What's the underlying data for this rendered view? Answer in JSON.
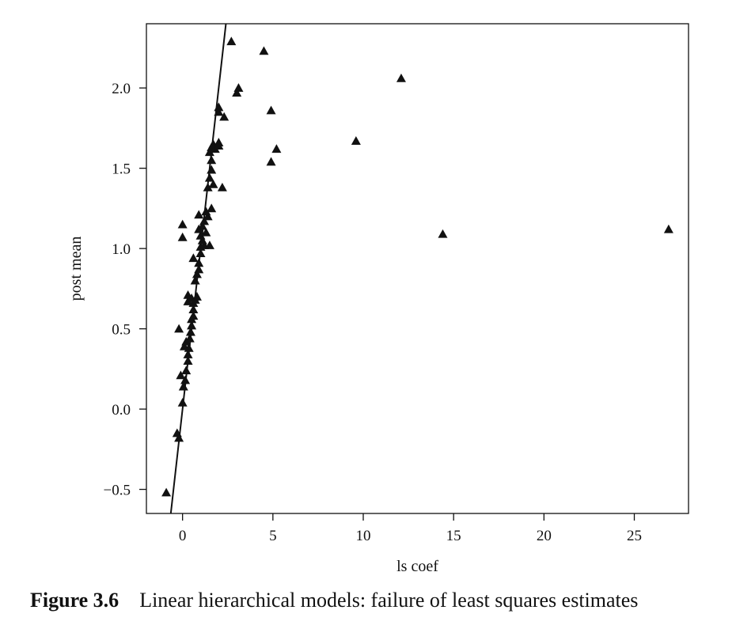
{
  "chart_data": {
    "type": "scatter",
    "xlabel": "ls coef",
    "ylabel": "post mean",
    "xlim": [
      -2,
      28
    ],
    "ylim": [
      -0.65,
      2.4
    ],
    "x_ticks": [
      0,
      5,
      10,
      15,
      20,
      25
    ],
    "y_ticks": [
      -0.5,
      0.0,
      0.5,
      1.0,
      1.5,
      2.0
    ],
    "x_tick_labels": [
      "0",
      "5",
      "10",
      "15",
      "20",
      "25"
    ],
    "y_tick_labels": [
      "−0.5",
      "0.0",
      "0.5",
      "1.0",
      "1.5",
      "2.0"
    ],
    "grid": false,
    "marker": "triangle",
    "reference_line": {
      "slope": 1.0,
      "intercept": 0.0
    },
    "points": [
      [
        -0.9,
        -0.52
      ],
      [
        -0.3,
        -0.15
      ],
      [
        -0.2,
        -0.18
      ],
      [
        0.0,
        0.04
      ],
      [
        0.05,
        0.14
      ],
      [
        0.15,
        0.18
      ],
      [
        -0.1,
        0.21
      ],
      [
        0.2,
        0.24
      ],
      [
        0.3,
        0.3
      ],
      [
        0.3,
        0.34
      ],
      [
        0.35,
        0.38
      ],
      [
        0.1,
        0.39
      ],
      [
        0.2,
        0.42
      ],
      [
        0.4,
        0.44
      ],
      [
        0.45,
        0.48
      ],
      [
        -0.2,
        0.5
      ],
      [
        0.5,
        0.52
      ],
      [
        0.5,
        0.56
      ],
      [
        0.6,
        0.58
      ],
      [
        0.6,
        0.62
      ],
      [
        0.6,
        0.66
      ],
      [
        0.3,
        0.67
      ],
      [
        0.5,
        0.69
      ],
      [
        0.7,
        0.68
      ],
      [
        0.3,
        0.71
      ],
      [
        0.8,
        0.7
      ],
      [
        0.7,
        0.8
      ],
      [
        0.8,
        0.84
      ],
      [
        0.9,
        0.87
      ],
      [
        0.9,
        0.91
      ],
      [
        0.6,
        0.94
      ],
      [
        1.0,
        0.97
      ],
      [
        1.0,
        1.01
      ],
      [
        1.2,
        1.02
      ],
      [
        1.5,
        1.02
      ],
      [
        1.1,
        1.05
      ],
      [
        1.0,
        1.08
      ],
      [
        1.3,
        1.1
      ],
      [
        1.1,
        1.14
      ],
      [
        0.0,
        1.07
      ],
      [
        0.0,
        1.15
      ],
      [
        0.9,
        1.12
      ],
      [
        1.2,
        1.17
      ],
      [
        1.4,
        1.2
      ],
      [
        0.9,
        1.21
      ],
      [
        1.3,
        1.23
      ],
      [
        1.6,
        1.25
      ],
      [
        1.4,
        1.38
      ],
      [
        1.7,
        1.4
      ],
      [
        2.2,
        1.38
      ],
      [
        1.5,
        1.44
      ],
      [
        1.6,
        1.49
      ],
      [
        1.6,
        1.55
      ],
      [
        1.5,
        1.6
      ],
      [
        1.6,
        1.63
      ],
      [
        1.8,
        1.62
      ],
      [
        1.7,
        1.65
      ],
      [
        2.0,
        1.64
      ],
      [
        2.0,
        1.66
      ],
      [
        2.0,
        1.85
      ],
      [
        2.0,
        1.88
      ],
      [
        2.3,
        1.82
      ],
      [
        2.7,
        2.29
      ],
      [
        3.0,
        1.97
      ],
      [
        3.1,
        2.0
      ],
      [
        4.5,
        2.23
      ],
      [
        4.9,
        1.86
      ],
      [
        4.9,
        1.54
      ],
      [
        5.2,
        1.62
      ],
      [
        9.6,
        1.67
      ],
      [
        12.1,
        2.06
      ],
      [
        14.4,
        1.09
      ],
      [
        26.9,
        1.12
      ]
    ]
  },
  "caption": {
    "label": "Figure 3.6",
    "text": "Linear hierarchical models: failure of least squares estimates"
  }
}
